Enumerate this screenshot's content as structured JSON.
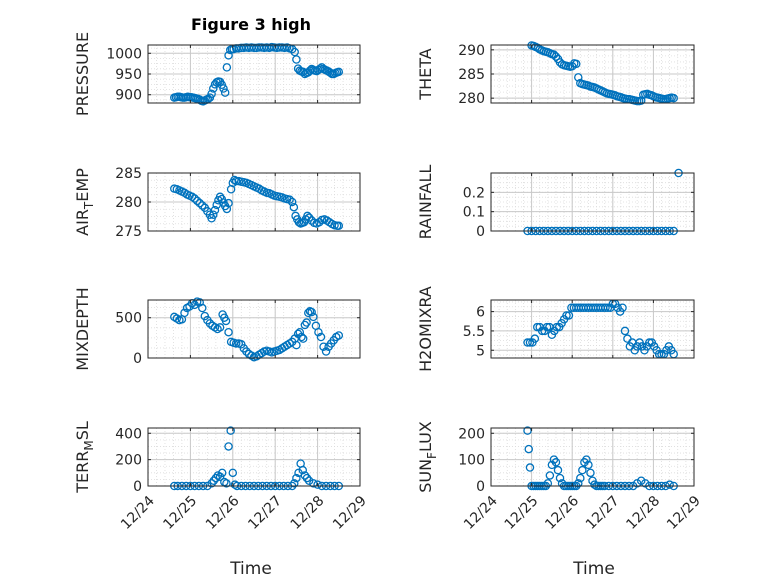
{
  "figure": {
    "title": "Figure 3 high",
    "xlabel": "Time"
  },
  "colors": {
    "marker": "#0072BD",
    "axis": "#262626",
    "grid": "#c8c8c8",
    "minor_grid": "#dcdcdc"
  },
  "chart_data": [
    {
      "type": "scatter",
      "ylabel": "PRESSURE",
      "xlim": [
        0,
        5
      ],
      "ylim": [
        880,
        1020
      ],
      "yticks": [
        "900",
        "950",
        "1000"
      ],
      "x": [
        0.62,
        0.66,
        0.7,
        0.74,
        0.78,
        0.82,
        0.86,
        0.9,
        0.94,
        0.98,
        1.02,
        1.06,
        1.1,
        1.14,
        1.18,
        1.22,
        1.26,
        1.3,
        1.34,
        1.38,
        1.42,
        1.46,
        1.5,
        1.54,
        1.58,
        1.62,
        1.66,
        1.7,
        1.74,
        1.78,
        1.82,
        1.86,
        1.9,
        1.94,
        1.98,
        2.02,
        2.08,
        2.14,
        2.2,
        2.26,
        2.32,
        2.38,
        2.44,
        2.5,
        2.56,
        2.62,
        2.68,
        2.74,
        2.8,
        2.86,
        2.92,
        2.98,
        3.04,
        3.1,
        3.16,
        3.22,
        3.28,
        3.34,
        3.4,
        3.46,
        3.5,
        3.54,
        3.58,
        3.62,
        3.66,
        3.7,
        3.74,
        3.78,
        3.82,
        3.86,
        3.9,
        3.94,
        3.98,
        4.02,
        4.06,
        4.1,
        4.14,
        4.18,
        4.22,
        4.26,
        4.3,
        4.34,
        4.38,
        4.42,
        4.46,
        4.5
      ],
      "y": [
        893,
        894,
        895,
        895,
        894,
        893,
        893,
        894,
        895,
        894,
        894,
        893,
        892,
        891,
        890,
        888,
        885,
        884,
        886,
        888,
        890,
        893,
        902,
        915,
        925,
        930,
        932,
        931,
        924,
        915,
        905,
        966,
        995,
        1008,
        1010,
        1010,
        1012,
        1012,
        1013,
        1013,
        1014,
        1013,
        1014,
        1013,
        1013,
        1014,
        1014,
        1013,
        1014,
        1013,
        1015,
        1014,
        1013,
        1014,
        1014,
        1013,
        1014,
        1012,
        1010,
        1003,
        985,
        963,
        958,
        956,
        955,
        950,
        952,
        954,
        958,
        962,
        960,
        958,
        957,
        960,
        963,
        966,
        962,
        960,
        958,
        956,
        953,
        950,
        950,
        952,
        954,
        955
      ]
    },
    {
      "type": "scatter",
      "ylabel": "THETA",
      "xlim": [
        0,
        5
      ],
      "ylim": [
        279,
        291
      ],
      "yticks": [
        "280",
        "285",
        "290"
      ],
      "x": [
        1.0,
        1.05,
        1.1,
        1.15,
        1.2,
        1.25,
        1.3,
        1.35,
        1.4,
        1.45,
        1.5,
        1.55,
        1.6,
        1.65,
        1.7,
        1.75,
        1.8,
        1.85,
        1.9,
        1.95,
        2.0,
        2.05,
        2.1,
        2.15,
        2.2,
        2.25,
        2.3,
        2.35,
        2.4,
        2.45,
        2.5,
        2.55,
        2.6,
        2.65,
        2.7,
        2.75,
        2.8,
        2.85,
        2.9,
        2.95,
        3.0,
        3.05,
        3.1,
        3.15,
        3.2,
        3.25,
        3.3,
        3.35,
        3.4,
        3.45,
        3.5,
        3.55,
        3.6,
        3.65,
        3.7,
        3.75,
        3.8,
        3.85,
        3.9,
        3.95,
        4.0,
        4.05,
        4.1,
        4.15,
        4.2,
        4.25,
        4.3,
        4.35,
        4.4,
        4.45,
        4.5
      ],
      "y": [
        290.9,
        290.8,
        290.6,
        290.4,
        290.1,
        289.9,
        289.7,
        289.6,
        289.5,
        289.3,
        289.1,
        289.0,
        288.6,
        288.1,
        287.4,
        287.0,
        286.8,
        286.7,
        286.6,
        286.5,
        286.6,
        287.2,
        287.1,
        284.3,
        283.1,
        282.9,
        282.8,
        282.7,
        282.6,
        282.4,
        282.3,
        282.2,
        282.0,
        281.8,
        281.6,
        281.4,
        281.2,
        281.0,
        280.9,
        280.8,
        280.7,
        280.6,
        280.4,
        280.3,
        280.2,
        280.0,
        279.9,
        279.8,
        279.8,
        279.7,
        279.6,
        279.5,
        279.4,
        279.4,
        279.5,
        280.7,
        280.8,
        280.9,
        280.7,
        280.6,
        280.4,
        280.2,
        280.1,
        280.0,
        279.9,
        279.8,
        279.8,
        279.9,
        280.0,
        280.1,
        280.0
      ]
    },
    {
      "type": "scatter",
      "ylabel": "AIR_TEMP",
      "xlim": [
        0,
        5
      ],
      "ylim": [
        275,
        285
      ],
      "yticks": [
        "275",
        "280",
        "285"
      ],
      "x": [
        0.62,
        0.68,
        0.74,
        0.8,
        0.86,
        0.92,
        0.98,
        1.04,
        1.1,
        1.16,
        1.22,
        1.28,
        1.34,
        1.4,
        1.46,
        1.5,
        1.54,
        1.58,
        1.62,
        1.66,
        1.7,
        1.74,
        1.78,
        1.82,
        1.86,
        1.9,
        1.96,
        2.0,
        2.04,
        2.08,
        2.14,
        2.2,
        2.26,
        2.32,
        2.38,
        2.44,
        2.5,
        2.56,
        2.62,
        2.68,
        2.74,
        2.8,
        2.86,
        2.92,
        2.98,
        3.04,
        3.1,
        3.16,
        3.22,
        3.28,
        3.34,
        3.4,
        3.44,
        3.48,
        3.52,
        3.56,
        3.6,
        3.64,
        3.68,
        3.72,
        3.76,
        3.8,
        3.86,
        3.92,
        3.98,
        4.04,
        4.1,
        4.16,
        4.22,
        4.28,
        4.34,
        4.4,
        4.46,
        4.5
      ],
      "y": [
        282.3,
        282.2,
        282.0,
        281.8,
        281.6,
        281.3,
        281.1,
        280.9,
        280.6,
        280.2,
        279.8,
        279.4,
        279.0,
        278.4,
        277.8,
        277.2,
        277.8,
        278.6,
        279.5,
        280.3,
        280.9,
        280.5,
        279.9,
        279.3,
        278.8,
        279.8,
        282.2,
        283.3,
        283.8,
        283.6,
        283.6,
        283.5,
        283.4,
        283.3,
        283.1,
        282.9,
        282.7,
        282.5,
        282.3,
        282.0,
        281.8,
        281.6,
        281.5,
        281.3,
        281.1,
        281.0,
        280.9,
        280.8,
        280.6,
        280.5,
        280.4,
        280.0,
        279.1,
        277.6,
        277.0,
        276.5,
        276.3,
        276.4,
        276.5,
        277.0,
        277.6,
        277.3,
        276.8,
        276.4,
        276.3,
        276.5,
        276.9,
        277.0,
        276.8,
        276.5,
        276.2,
        276.0,
        275.9,
        275.9
      ]
    },
    {
      "type": "scatter",
      "ylabel": "RAINFALL",
      "xlim": [
        0,
        5
      ],
      "ylim": [
        0,
        0.3
      ],
      "yticks": [
        "0",
        "0.1",
        "0.2"
      ],
      "x": [
        0.9,
        1.0,
        1.1,
        1.2,
        1.3,
        1.4,
        1.5,
        1.6,
        1.7,
        1.8,
        1.9,
        2.0,
        2.1,
        2.2,
        2.3,
        2.4,
        2.5,
        2.6,
        2.7,
        2.8,
        2.9,
        3.0,
        3.1,
        3.2,
        3.3,
        3.4,
        3.5,
        3.6,
        3.7,
        3.8,
        3.9,
        4.0,
        4.1,
        4.2,
        4.3,
        4.4,
        4.5,
        4.62
      ],
      "y": [
        0,
        0,
        0,
        0,
        0,
        0,
        0,
        0,
        0,
        0,
        0,
        0,
        0,
        0,
        0,
        0,
        0,
        0,
        0,
        0,
        0,
        0,
        0,
        0,
        0,
        0,
        0,
        0,
        0,
        0,
        0,
        0,
        0,
        0,
        0,
        0,
        0,
        0.3
      ]
    },
    {
      "type": "scatter",
      "ylabel": "MIXDEPTH",
      "xlim": [
        0,
        5
      ],
      "ylim": [
        0,
        720
      ],
      "yticks": [
        "0",
        "500"
      ],
      "x": [
        0.62,
        0.68,
        0.74,
        0.8,
        0.86,
        0.92,
        0.98,
        1.04,
        1.1,
        1.16,
        1.22,
        1.28,
        1.34,
        1.4,
        1.46,
        1.52,
        1.58,
        1.64,
        1.7,
        1.76,
        1.8,
        1.84,
        1.9,
        1.96,
        2.02,
        2.08,
        2.14,
        2.2,
        2.26,
        2.32,
        2.38,
        2.44,
        2.5,
        2.56,
        2.62,
        2.68,
        2.74,
        2.8,
        2.86,
        2.92,
        2.98,
        3.04,
        3.1,
        3.16,
        3.22,
        3.28,
        3.34,
        3.4,
        3.46,
        3.5,
        3.54,
        3.58,
        3.62,
        3.66,
        3.7,
        3.74,
        3.78,
        3.82,
        3.86,
        3.9,
        3.96,
        4.02,
        4.08,
        4.14,
        4.2,
        4.26,
        4.32,
        4.38,
        4.44,
        4.5
      ],
      "y": [
        510,
        490,
        470,
        480,
        560,
        620,
        640,
        680,
        660,
        700,
        690,
        620,
        520,
        470,
        430,
        400,
        380,
        360,
        380,
        540,
        500,
        460,
        320,
        200,
        190,
        180,
        180,
        170,
        120,
        80,
        50,
        30,
        10,
        20,
        40,
        60,
        80,
        90,
        80,
        70,
        80,
        90,
        100,
        120,
        140,
        160,
        180,
        200,
        240,
        160,
        300,
        320,
        260,
        240,
        410,
        440,
        560,
        580,
        570,
        510,
        400,
        320,
        260,
        140,
        80,
        140,
        180,
        220,
        260,
        280
      ]
    },
    {
      "type": "scatter",
      "ylabel": "H2OMIXRA",
      "xlim": [
        0,
        5
      ],
      "ylim": [
        4.8,
        6.3
      ],
      "yticks": [
        "5",
        "5.5",
        "6"
      ],
      "x": [
        0.9,
        0.96,
        1.02,
        1.08,
        1.14,
        1.2,
        1.26,
        1.32,
        1.38,
        1.44,
        1.5,
        1.56,
        1.62,
        1.68,
        1.74,
        1.8,
        1.86,
        1.92,
        1.98,
        2.04,
        2.1,
        2.16,
        2.22,
        2.28,
        2.34,
        2.4,
        2.46,
        2.52,
        2.58,
        2.64,
        2.7,
        2.76,
        2.82,
        2.88,
        2.94,
        3.0,
        3.06,
        3.12,
        3.18,
        3.24,
        3.3,
        3.36,
        3.42,
        3.48,
        3.54,
        3.6,
        3.66,
        3.72,
        3.78,
        3.84,
        3.9,
        3.96,
        4.02,
        4.08,
        4.14,
        4.2,
        4.26,
        4.32,
        4.38,
        4.44,
        4.5
      ],
      "y": [
        5.2,
        5.2,
        5.2,
        5.3,
        5.6,
        5.6,
        5.5,
        5.5,
        5.6,
        5.6,
        5.4,
        5.5,
        5.6,
        5.6,
        5.7,
        5.8,
        5.9,
        5.9,
        6.1,
        6.1,
        6.1,
        6.1,
        6.1,
        6.1,
        6.1,
        6.1,
        6.1,
        6.1,
        6.1,
        6.1,
        6.1,
        6.1,
        6.1,
        6.1,
        6.1,
        6.2,
        6.2,
        6.1,
        6.0,
        6.1,
        5.5,
        5.3,
        5.1,
        5.2,
        5.0,
        5.1,
        5.2,
        5.1,
        5.0,
        5.1,
        5.2,
        5.2,
        5.1,
        5.0,
        4.9,
        4.9,
        4.9,
        5.0,
        5.1,
        5.0,
        4.9
      ]
    },
    {
      "type": "scatter",
      "ylabel": "TERR_MSL",
      "xlim": [
        0,
        5
      ],
      "ylim": [
        0,
        440
      ],
      "yticks": [
        "0",
        "200",
        "400"
      ],
      "x": [
        0.62,
        0.7,
        0.8,
        0.9,
        1.0,
        1.1,
        1.2,
        1.3,
        1.4,
        1.5,
        1.55,
        1.6,
        1.65,
        1.7,
        1.75,
        1.8,
        1.85,
        1.9,
        1.95,
        2.0,
        2.05,
        2.1,
        2.2,
        2.3,
        2.4,
        2.5,
        2.6,
        2.7,
        2.8,
        2.9,
        3.0,
        3.1,
        3.2,
        3.3,
        3.4,
        3.45,
        3.5,
        3.55,
        3.6,
        3.65,
        3.7,
        3.75,
        3.8,
        3.9,
        4.0,
        4.1,
        4.2,
        4.3,
        4.4,
        4.5
      ],
      "y": [
        0,
        0,
        0,
        0,
        0,
        0,
        0,
        0,
        0,
        20,
        40,
        60,
        80,
        70,
        100,
        30,
        20,
        300,
        420,
        100,
        10,
        0,
        0,
        0,
        0,
        0,
        0,
        0,
        0,
        0,
        0,
        0,
        0,
        0,
        0,
        20,
        60,
        100,
        170,
        120,
        80,
        60,
        40,
        20,
        10,
        0,
        0,
        0,
        0,
        0
      ]
    },
    {
      "type": "scatter",
      "ylabel": "SUN_FLUX",
      "xlim": [
        0,
        5
      ],
      "ylim": [
        0,
        220
      ],
      "yticks": [
        "0",
        "100",
        "200"
      ],
      "x": [
        0.9,
        0.93,
        0.96,
        1.0,
        1.05,
        1.1,
        1.15,
        1.2,
        1.25,
        1.3,
        1.35,
        1.4,
        1.45,
        1.5,
        1.55,
        1.6,
        1.65,
        1.7,
        1.75,
        1.8,
        1.85,
        1.9,
        1.95,
        2.0,
        2.05,
        2.1,
        2.15,
        2.2,
        2.25,
        2.3,
        2.35,
        2.4,
        2.45,
        2.5,
        2.55,
        2.6,
        2.65,
        2.7,
        2.75,
        2.8,
        2.9,
        3.0,
        3.1,
        3.2,
        3.3,
        3.4,
        3.5,
        3.6,
        3.7,
        3.8,
        3.9,
        4.0,
        4.1,
        4.2,
        4.3,
        4.4,
        4.5
      ],
      "y": [
        210,
        140,
        70,
        0,
        0,
        0,
        0,
        0,
        0,
        0,
        0,
        10,
        40,
        80,
        100,
        90,
        60,
        30,
        10,
        0,
        0,
        0,
        0,
        0,
        0,
        0,
        10,
        30,
        60,
        90,
        100,
        80,
        50,
        20,
        5,
        0,
        0,
        0,
        0,
        0,
        0,
        0,
        0,
        0,
        0,
        0,
        0,
        10,
        20,
        10,
        0,
        0,
        0,
        0,
        0,
        5,
        0
      ]
    }
  ],
  "x_axis": {
    "ticks": [
      "12/24",
      "12/25",
      "12/26",
      "12/27",
      "12/28",
      "12/29"
    ]
  }
}
